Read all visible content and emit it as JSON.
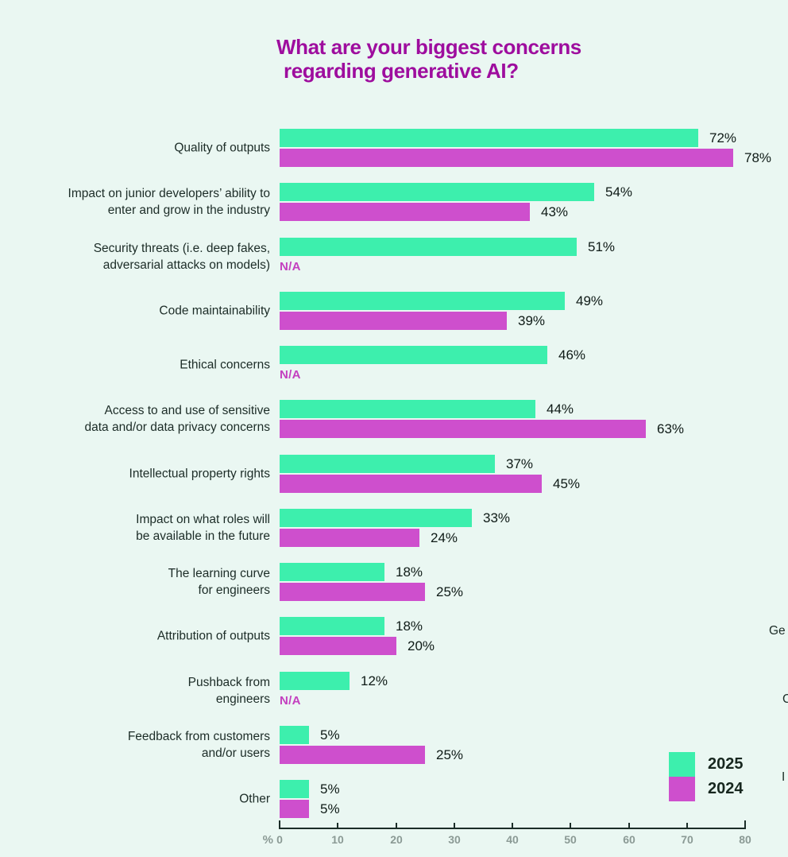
{
  "title": {
    "line1": "What are your biggest concerns",
    "line2": "regarding generative AI?"
  },
  "colors": {
    "background": "#EAF7F2",
    "series_2025": "#3DEFAD",
    "series_2024": "#CE4FCD",
    "title": "#9E0D9E",
    "na_text": "#C33FBF",
    "category_text": "#1C2C27",
    "value_text": "#0E1A16",
    "axis_line": "#1B2D28",
    "tick_text": "#8B9A95"
  },
  "legend": {
    "items": [
      {
        "label": "2025",
        "color": "#3DEFAD"
      },
      {
        "label": "2024",
        "color": "#CE4FCD"
      }
    ]
  },
  "chart_data": {
    "type": "bar",
    "orientation": "horizontal",
    "title": "What are your biggest concerns regarding generative AI?",
    "xlabel": "%",
    "xlim": [
      0,
      80
    ],
    "xticks": [
      0,
      10,
      20,
      30,
      40,
      50,
      60,
      70,
      80
    ],
    "na_label": "N/A",
    "legend_position": "bottom-right",
    "categories": [
      "Quality of outputs",
      "Impact on junior developers’ ability to\nenter and grow in the industry",
      "Security threats (i.e. deep fakes,\nadversarial attacks on models)",
      "Code maintainability",
      "Ethical concerns",
      "Access to and use of sensitive\ndata and/or data privacy concerns",
      "Intellectual property rights",
      "Impact on what roles will\nbe available in the future",
      "The learning curve\nfor engineers",
      "Attribution of outputs",
      "Pushback from\nengineers",
      "Feedback from customers\nand/or users",
      "Other"
    ],
    "series": [
      {
        "name": "2025",
        "values": [
          72,
          54,
          51,
          49,
          46,
          44,
          37,
          33,
          18,
          18,
          12,
          5,
          5
        ]
      },
      {
        "name": "2024",
        "values": [
          78,
          43,
          null,
          39,
          null,
          63,
          45,
          24,
          25,
          20,
          null,
          25,
          5
        ]
      }
    ]
  },
  "edge_fragments": [
    {
      "text": "Ge"
    },
    {
      "text": "C"
    },
    {
      "text": "I"
    }
  ]
}
